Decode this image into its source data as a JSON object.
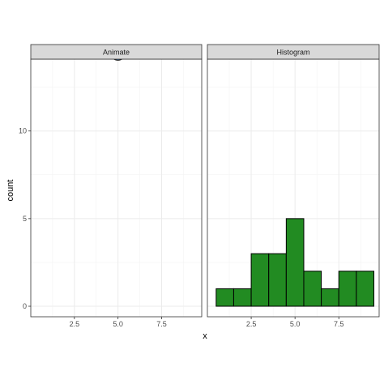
{
  "chart_data": {
    "type": "faceted",
    "x_label": "x",
    "y_label": "count",
    "x_ticks": [
      2.5,
      5.0,
      7.5
    ],
    "x_tick_labels": [
      "2.5",
      "5.0",
      "7.5"
    ],
    "y_ticks": [
      0,
      5,
      10
    ],
    "y_tick_labels": [
      "0",
      "5",
      "10"
    ],
    "xlim": [
      0,
      9.8
    ],
    "ylim": [
      -0.6,
      14.1
    ],
    "grid": true,
    "facets": [
      {
        "title": "Animate",
        "type": "scatter",
        "points": [
          {
            "x": 5.0,
            "y": 14.5,
            "fill": "#3a7dc9"
          }
        ]
      },
      {
        "title": "Histogram",
        "type": "histogram",
        "bin_width": 1.0,
        "bar_fill": "#228b22",
        "bins": [
          {
            "x": 1.0,
            "count": 1
          },
          {
            "x": 2.0,
            "count": 1
          },
          {
            "x": 3.0,
            "count": 3
          },
          {
            "x": 4.0,
            "count": 3
          },
          {
            "x": 5.0,
            "count": 5
          },
          {
            "x": 6.0,
            "count": 2
          },
          {
            "x": 7.0,
            "count": 1
          },
          {
            "x": 8.0,
            "count": 2
          },
          {
            "x": 9.0,
            "count": 2
          }
        ]
      }
    ]
  }
}
